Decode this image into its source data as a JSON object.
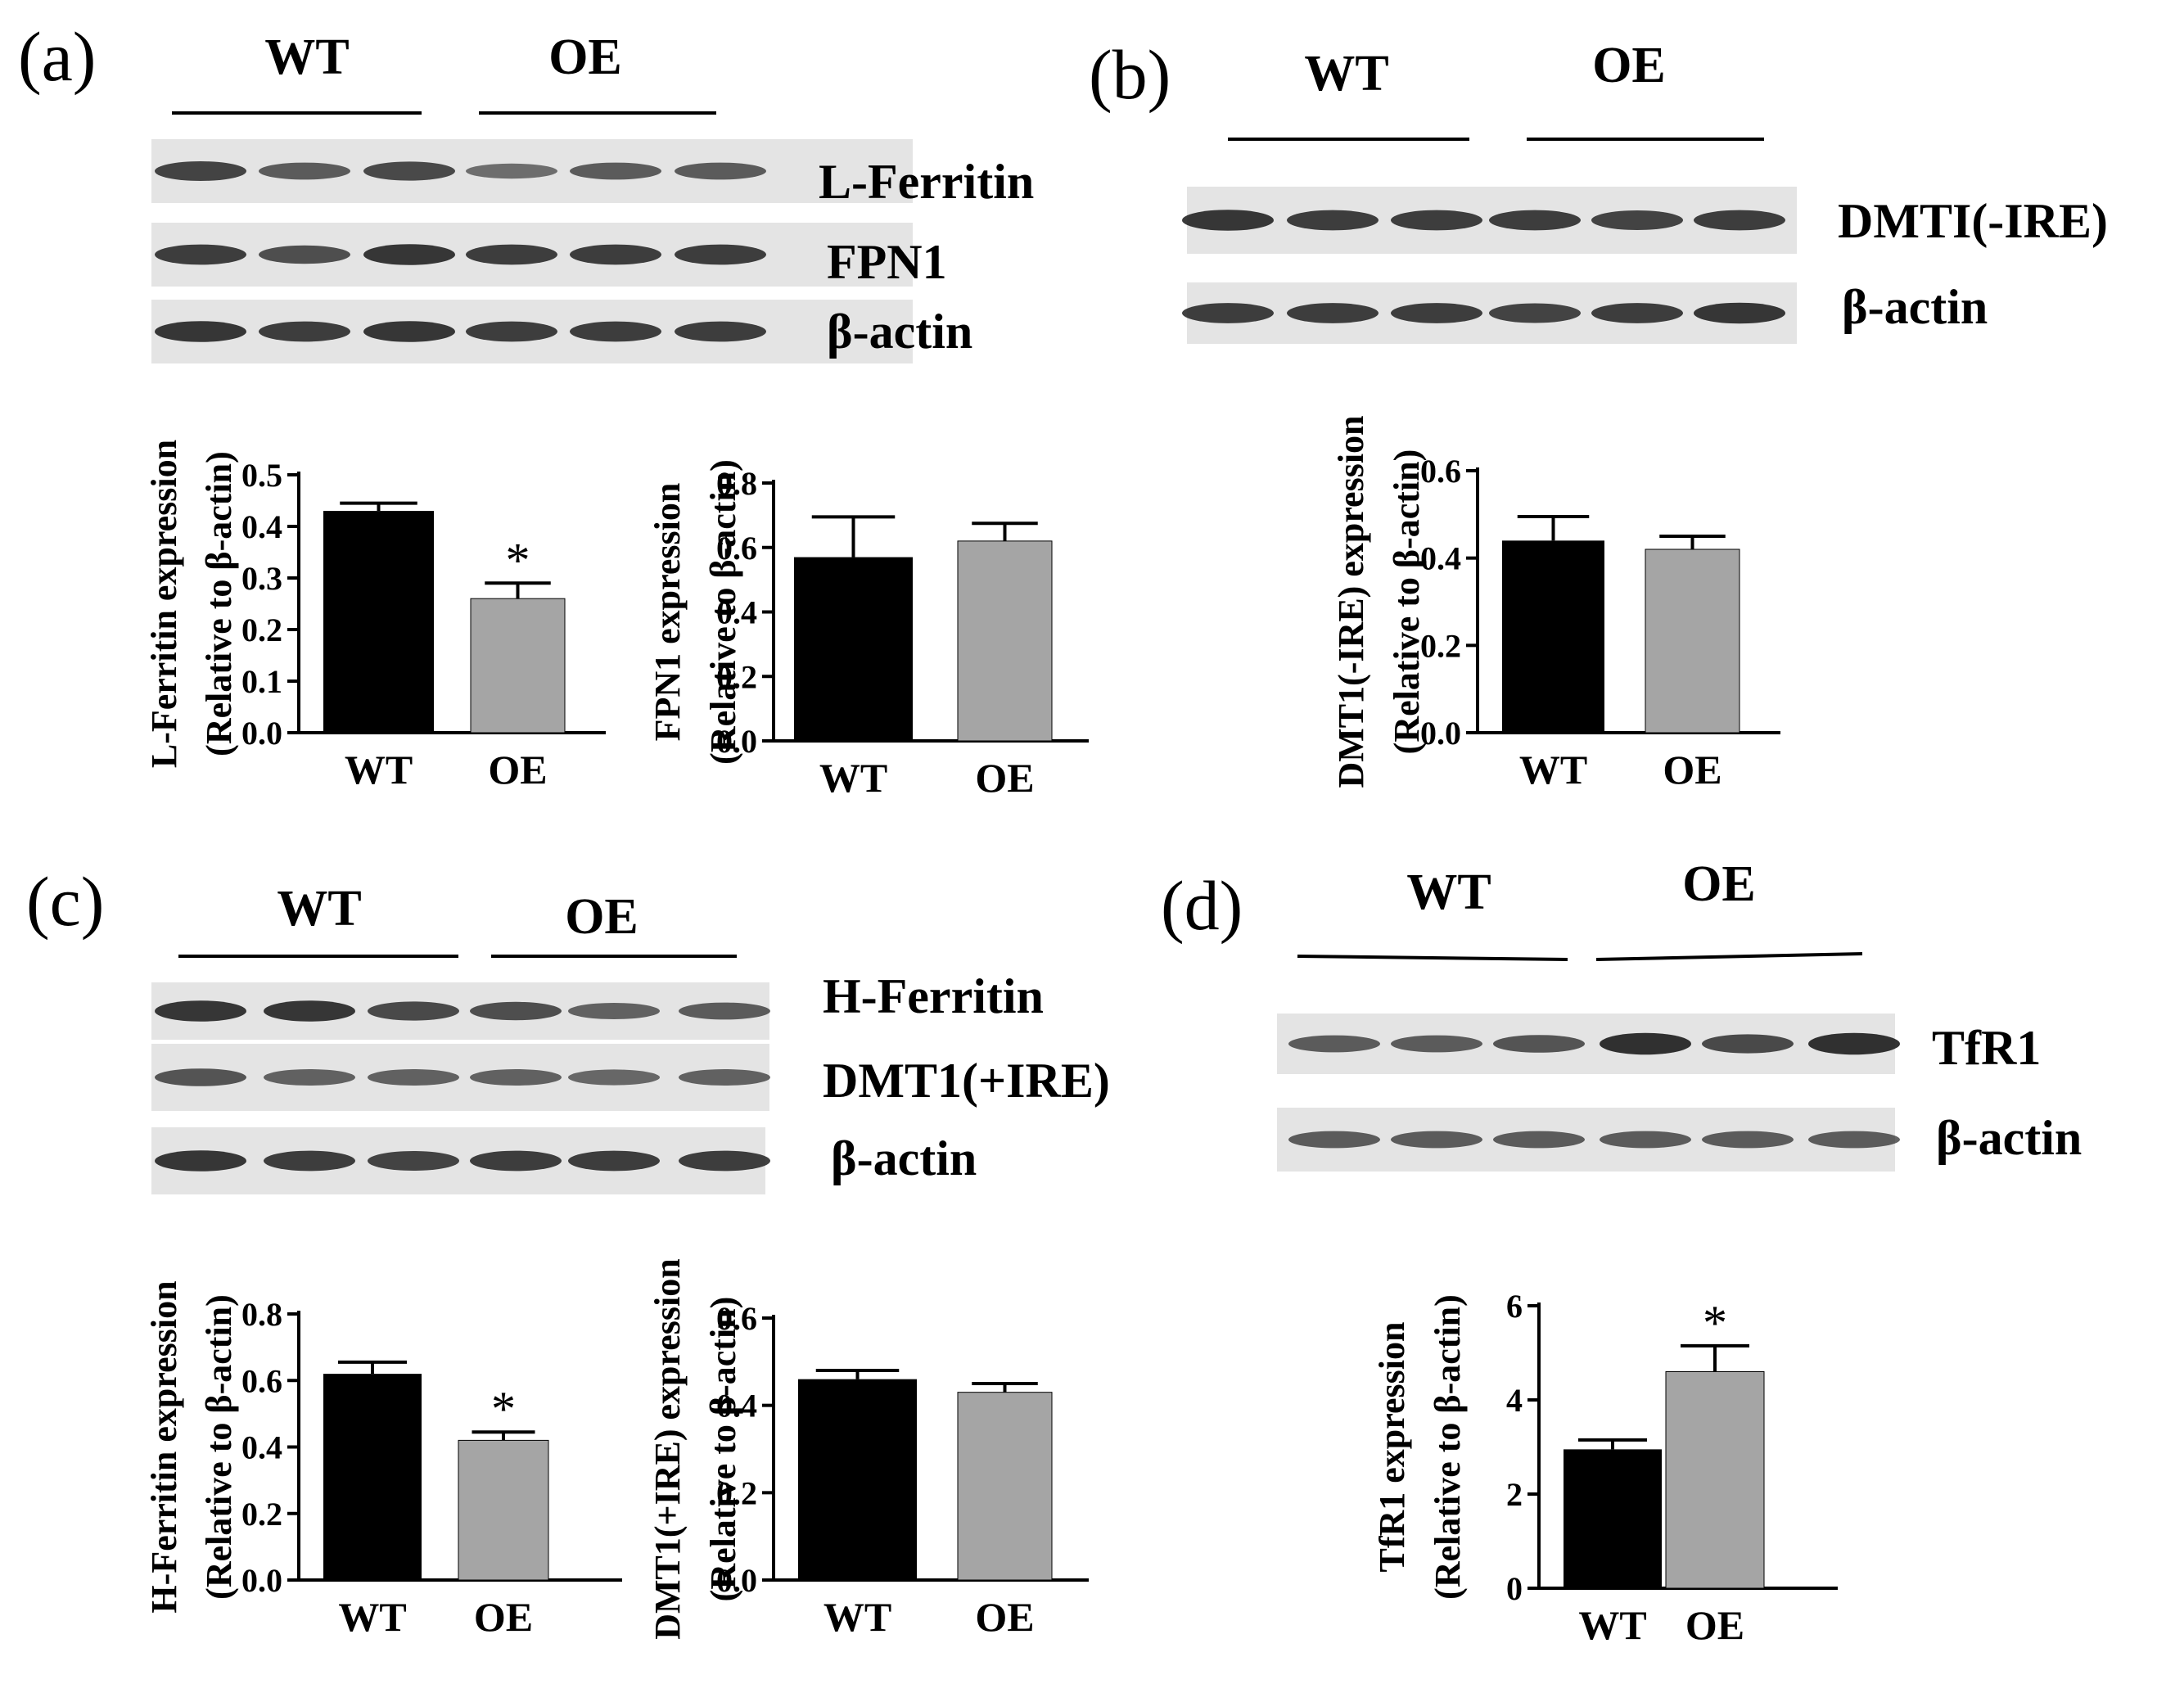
{
  "panels": [
    {
      "id": "a",
      "label": "(a)",
      "group_labels": [
        "WT",
        "OE"
      ],
      "blots": [
        {
          "name": "L-Ferritin",
          "bands": [
            0.75,
            0.55,
            0.7,
            0.4,
            0.55,
            0.55
          ]
        },
        {
          "name": "FPN1",
          "bands": [
            0.8,
            0.65,
            0.85,
            0.8,
            0.8,
            0.8
          ]
        },
        {
          "name": "β-actin",
          "bands": [
            0.85,
            0.8,
            0.85,
            0.8,
            0.8,
            0.8
          ]
        }
      ]
    },
    {
      "id": "b",
      "label": "(b)",
      "group_labels": [
        "WT",
        "OE"
      ],
      "blots": [
        {
          "name": "DMTI(-IRE)",
          "bands": [
            0.85,
            0.8,
            0.8,
            0.8,
            0.75,
            0.8
          ]
        },
        {
          "name": "β-actin",
          "bands": [
            0.8,
            0.8,
            0.8,
            0.75,
            0.8,
            0.85
          ]
        }
      ]
    },
    {
      "id": "c",
      "label": "(c)",
      "group_labels": [
        "WT",
        "OE"
      ],
      "blots": [
        {
          "name": "H-Ferritin",
          "bands": [
            0.85,
            0.85,
            0.7,
            0.65,
            0.5,
            0.55
          ]
        },
        {
          "name": "DMT1(+IRE)",
          "bands": [
            0.6,
            0.5,
            0.5,
            0.5,
            0.45,
            0.5
          ]
        },
        {
          "name": "β-actin",
          "bands": [
            0.85,
            0.8,
            0.75,
            0.8,
            0.8,
            0.8
          ]
        }
      ]
    },
    {
      "id": "d",
      "label": "(d)",
      "group_labels": [
        "WT",
        "OE"
      ],
      "blots": [
        {
          "name": "TfR1",
          "bands": [
            0.55,
            0.55,
            0.6,
            0.9,
            0.7,
            0.9
          ]
        },
        {
          "name": "β-actin",
          "bands": [
            0.55,
            0.55,
            0.55,
            0.55,
            0.55,
            0.55
          ]
        }
      ]
    }
  ],
  "colors": {
    "wt": "#000000",
    "oe": "#a5a5a5",
    "axis": "#000000",
    "blot_bg": "#e4e4e4",
    "band": "#1a1a1a"
  },
  "chart_data": [
    {
      "type": "bar",
      "id": "a1",
      "categories": [
        "WT",
        "OE"
      ],
      "values": [
        0.43,
        0.26
      ],
      "errors": [
        0.015,
        0.03
      ],
      "significance": [
        "",
        "*"
      ],
      "ylabel": "L-Ferritin expression",
      "ylabel2": "(Relative to β-actin)",
      "ylim": [
        0,
        0.5
      ],
      "yticks": [
        "0.0",
        "0.1",
        "0.2",
        "0.3",
        "0.4",
        "0.5"
      ]
    },
    {
      "type": "bar",
      "id": "a2",
      "categories": [
        "WT",
        "OE"
      ],
      "values": [
        0.57,
        0.62
      ],
      "errors": [
        0.125,
        0.055
      ],
      "significance": [
        "",
        ""
      ],
      "ylabel": "FPN1 expression",
      "ylabel2": "(Relative to β-actin)",
      "ylim": [
        0,
        0.8
      ],
      "yticks": [
        "0.0",
        "0.2",
        "0.4",
        "0.6",
        "0.8"
      ]
    },
    {
      "type": "bar",
      "id": "b1",
      "categories": [
        "WT",
        "OE"
      ],
      "values": [
        0.44,
        0.42
      ],
      "errors": [
        0.055,
        0.03
      ],
      "significance": [
        "",
        ""
      ],
      "ylabel": "DMT1(-IRE) expression",
      "ylabel2": "(Relative to β-actin)",
      "ylim": [
        0,
        0.6
      ],
      "yticks": [
        "0.0",
        "0.2",
        "0.4",
        "0.6"
      ]
    },
    {
      "type": "bar",
      "id": "c1",
      "categories": [
        "WT",
        "OE"
      ],
      "values": [
        0.62,
        0.42
      ],
      "errors": [
        0.035,
        0.025
      ],
      "significance": [
        "",
        "*"
      ],
      "ylabel": "H-Ferritin expression",
      "ylabel2": "(Relative to β-actin)",
      "ylim": [
        0,
        0.8
      ],
      "yticks": [
        "0.0",
        "0.2",
        "0.4",
        "0.6",
        "0.8"
      ]
    },
    {
      "type": "bar",
      "id": "c2",
      "categories": [
        "WT",
        "OE"
      ],
      "values": [
        0.46,
        0.43
      ],
      "errors": [
        0.02,
        0.02
      ],
      "significance": [
        "",
        ""
      ],
      "ylabel": "DMT1(+IRE) expression",
      "ylabel2": "(Relative to β-actin)",
      "ylim": [
        0,
        0.6
      ],
      "yticks": [
        "0.0",
        "0.2",
        "0.4",
        "0.6"
      ]
    },
    {
      "type": "bar",
      "id": "d1",
      "categories": [
        "WT",
        "OE"
      ],
      "values": [
        2.95,
        4.6
      ],
      "errors": [
        0.2,
        0.55
      ],
      "significance": [
        "",
        "*"
      ],
      "ylabel": "TfR1 expression",
      "ylabel2": "(Relative to β-actin)",
      "ylim": [
        0,
        6
      ],
      "yticks": [
        "0",
        "2",
        "4",
        "6"
      ]
    }
  ]
}
